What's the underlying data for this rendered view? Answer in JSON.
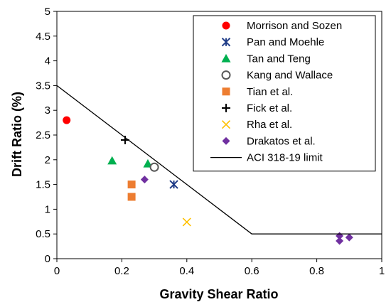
{
  "chart_data": {
    "type": "scatter",
    "xlabel": "Gravity Shear Ratio",
    "ylabel": "Drift Ratio (%)",
    "xlim": [
      0,
      1
    ],
    "ylim": [
      0,
      5
    ],
    "xticks": [
      "0",
      "0.2",
      "0.4",
      "0.6",
      "0.8",
      "1"
    ],
    "yticks": [
      "0",
      "0.5",
      "1",
      "1.5",
      "2",
      "2.5",
      "3",
      "3.5",
      "4",
      "4.5",
      "5"
    ],
    "grid": false,
    "legend_position": "top-right",
    "series": [
      {
        "name": "Morrison and Sozen",
        "marker": "circle",
        "color": "#ff0000",
        "points": [
          [
            0.03,
            2.8
          ]
        ]
      },
      {
        "name": "Pan and Moehle",
        "marker": "star-x",
        "color": "#1f3c88",
        "points": [
          [
            0.36,
            1.5
          ]
        ]
      },
      {
        "name": "Tan and Teng",
        "marker": "triangle",
        "color": "#00b050",
        "points": [
          [
            0.17,
            1.98
          ],
          [
            0.28,
            1.92
          ]
        ]
      },
      {
        "name": "Kang and Wallace",
        "marker": "open-circle",
        "color": "#595959",
        "points": [
          [
            0.3,
            1.85
          ]
        ]
      },
      {
        "name": "Tian et al.",
        "marker": "square",
        "color": "#ed7d31",
        "points": [
          [
            0.23,
            1.5
          ],
          [
            0.23,
            1.25
          ]
        ]
      },
      {
        "name": "Fick et al.",
        "marker": "plus",
        "color": "#000000",
        "points": [
          [
            0.21,
            2.4
          ]
        ]
      },
      {
        "name": "Rha et al.",
        "marker": "x",
        "color": "#ffc000",
        "points": [
          [
            0.4,
            0.74
          ]
        ]
      },
      {
        "name": "Drakatos et al.",
        "marker": "diamond",
        "color": "#7030a0",
        "points": [
          [
            0.27,
            1.6
          ],
          [
            0.87,
            0.46
          ],
          [
            0.87,
            0.36
          ],
          [
            0.9,
            0.43
          ]
        ]
      },
      {
        "name": "ACI 318-19 limit",
        "marker": "line",
        "color": "#000000",
        "points": [
          [
            0,
            3.5
          ],
          [
            0.6,
            0.5
          ],
          [
            1.0,
            0.5
          ]
        ]
      }
    ]
  }
}
